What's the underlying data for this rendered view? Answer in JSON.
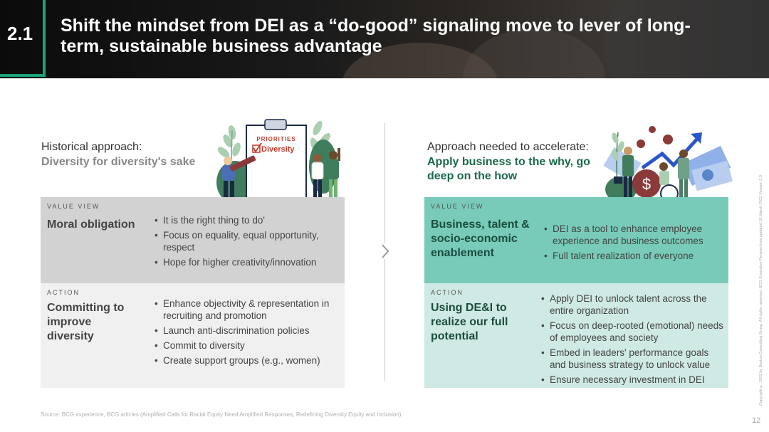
{
  "header": {
    "section_number": "2.1",
    "title": "Shift the mindset from DEI as a “do-good” signaling move to lever of long-term, sustainable business advantage"
  },
  "left": {
    "label": "Historical approach:",
    "subtitle": "Diversity for diversity's sake",
    "illustration": {
      "clipboard_header": "PRIORITIES",
      "clipboard_item": "Diversity"
    },
    "value_view": {
      "tag": "VALUE VIEW",
      "heading": "Moral obligation",
      "bullets": [
        "It is the right thing to do'",
        "Focus on equality,  equal opportunity, respect",
        "Hope for higher creativity/innovation"
      ]
    },
    "action": {
      "tag": "ACTION",
      "heading": "Committing to improve diversity",
      "bullets": [
        "Enhance objectivity & representation in recruiting and promotion",
        "Launch anti-discrimination  policies",
        "Commit to diversity",
        "Create support groups (e.g., women)"
      ]
    }
  },
  "right": {
    "label": "Approach needed to accelerate:",
    "subtitle": "Apply business to the why, go deep on the how",
    "value_view": {
      "tag": "VALUE VIEW",
      "heading": "Business, talent & socio-economic enablement",
      "bullets": [
        "DEI as a tool to enhance employee experience and business outcomes",
        "Full talent realization  of everyone"
      ]
    },
    "action": {
      "tag": "ACTION",
      "heading": "Using DE&I to realize our full potential",
      "bullets": [
        "Apply DEI to unlock talent across the entire organization",
        "Focus on deep-rooted (emotional) needs of employees and society",
        "Embed in leaders' performance goals and business strategy to unlock value",
        "Ensure necessary investment in DEI"
      ]
    }
  },
  "footer": {
    "source": "Source: BCG experience, BCG articles (Amplified Calls for Racial Equity Need Amplified Responses, Redefining Diversity Equity and Inclusion)",
    "page_number": "12",
    "copyright": "Copyright © 2022 by Boston Consulting Group. All rights reserved. BCG Executive Perspectives updated 18 March 2022 Version 2.0"
  },
  "colors": {
    "accent": "#1aa37a",
    "left_value_bg": "#d2d2d2",
    "left_action_bg": "#f0f0f0",
    "right_value_bg": "#77cbb8",
    "right_action_bg": "#cfe9e4",
    "right_heading": "#1b4d3e"
  }
}
